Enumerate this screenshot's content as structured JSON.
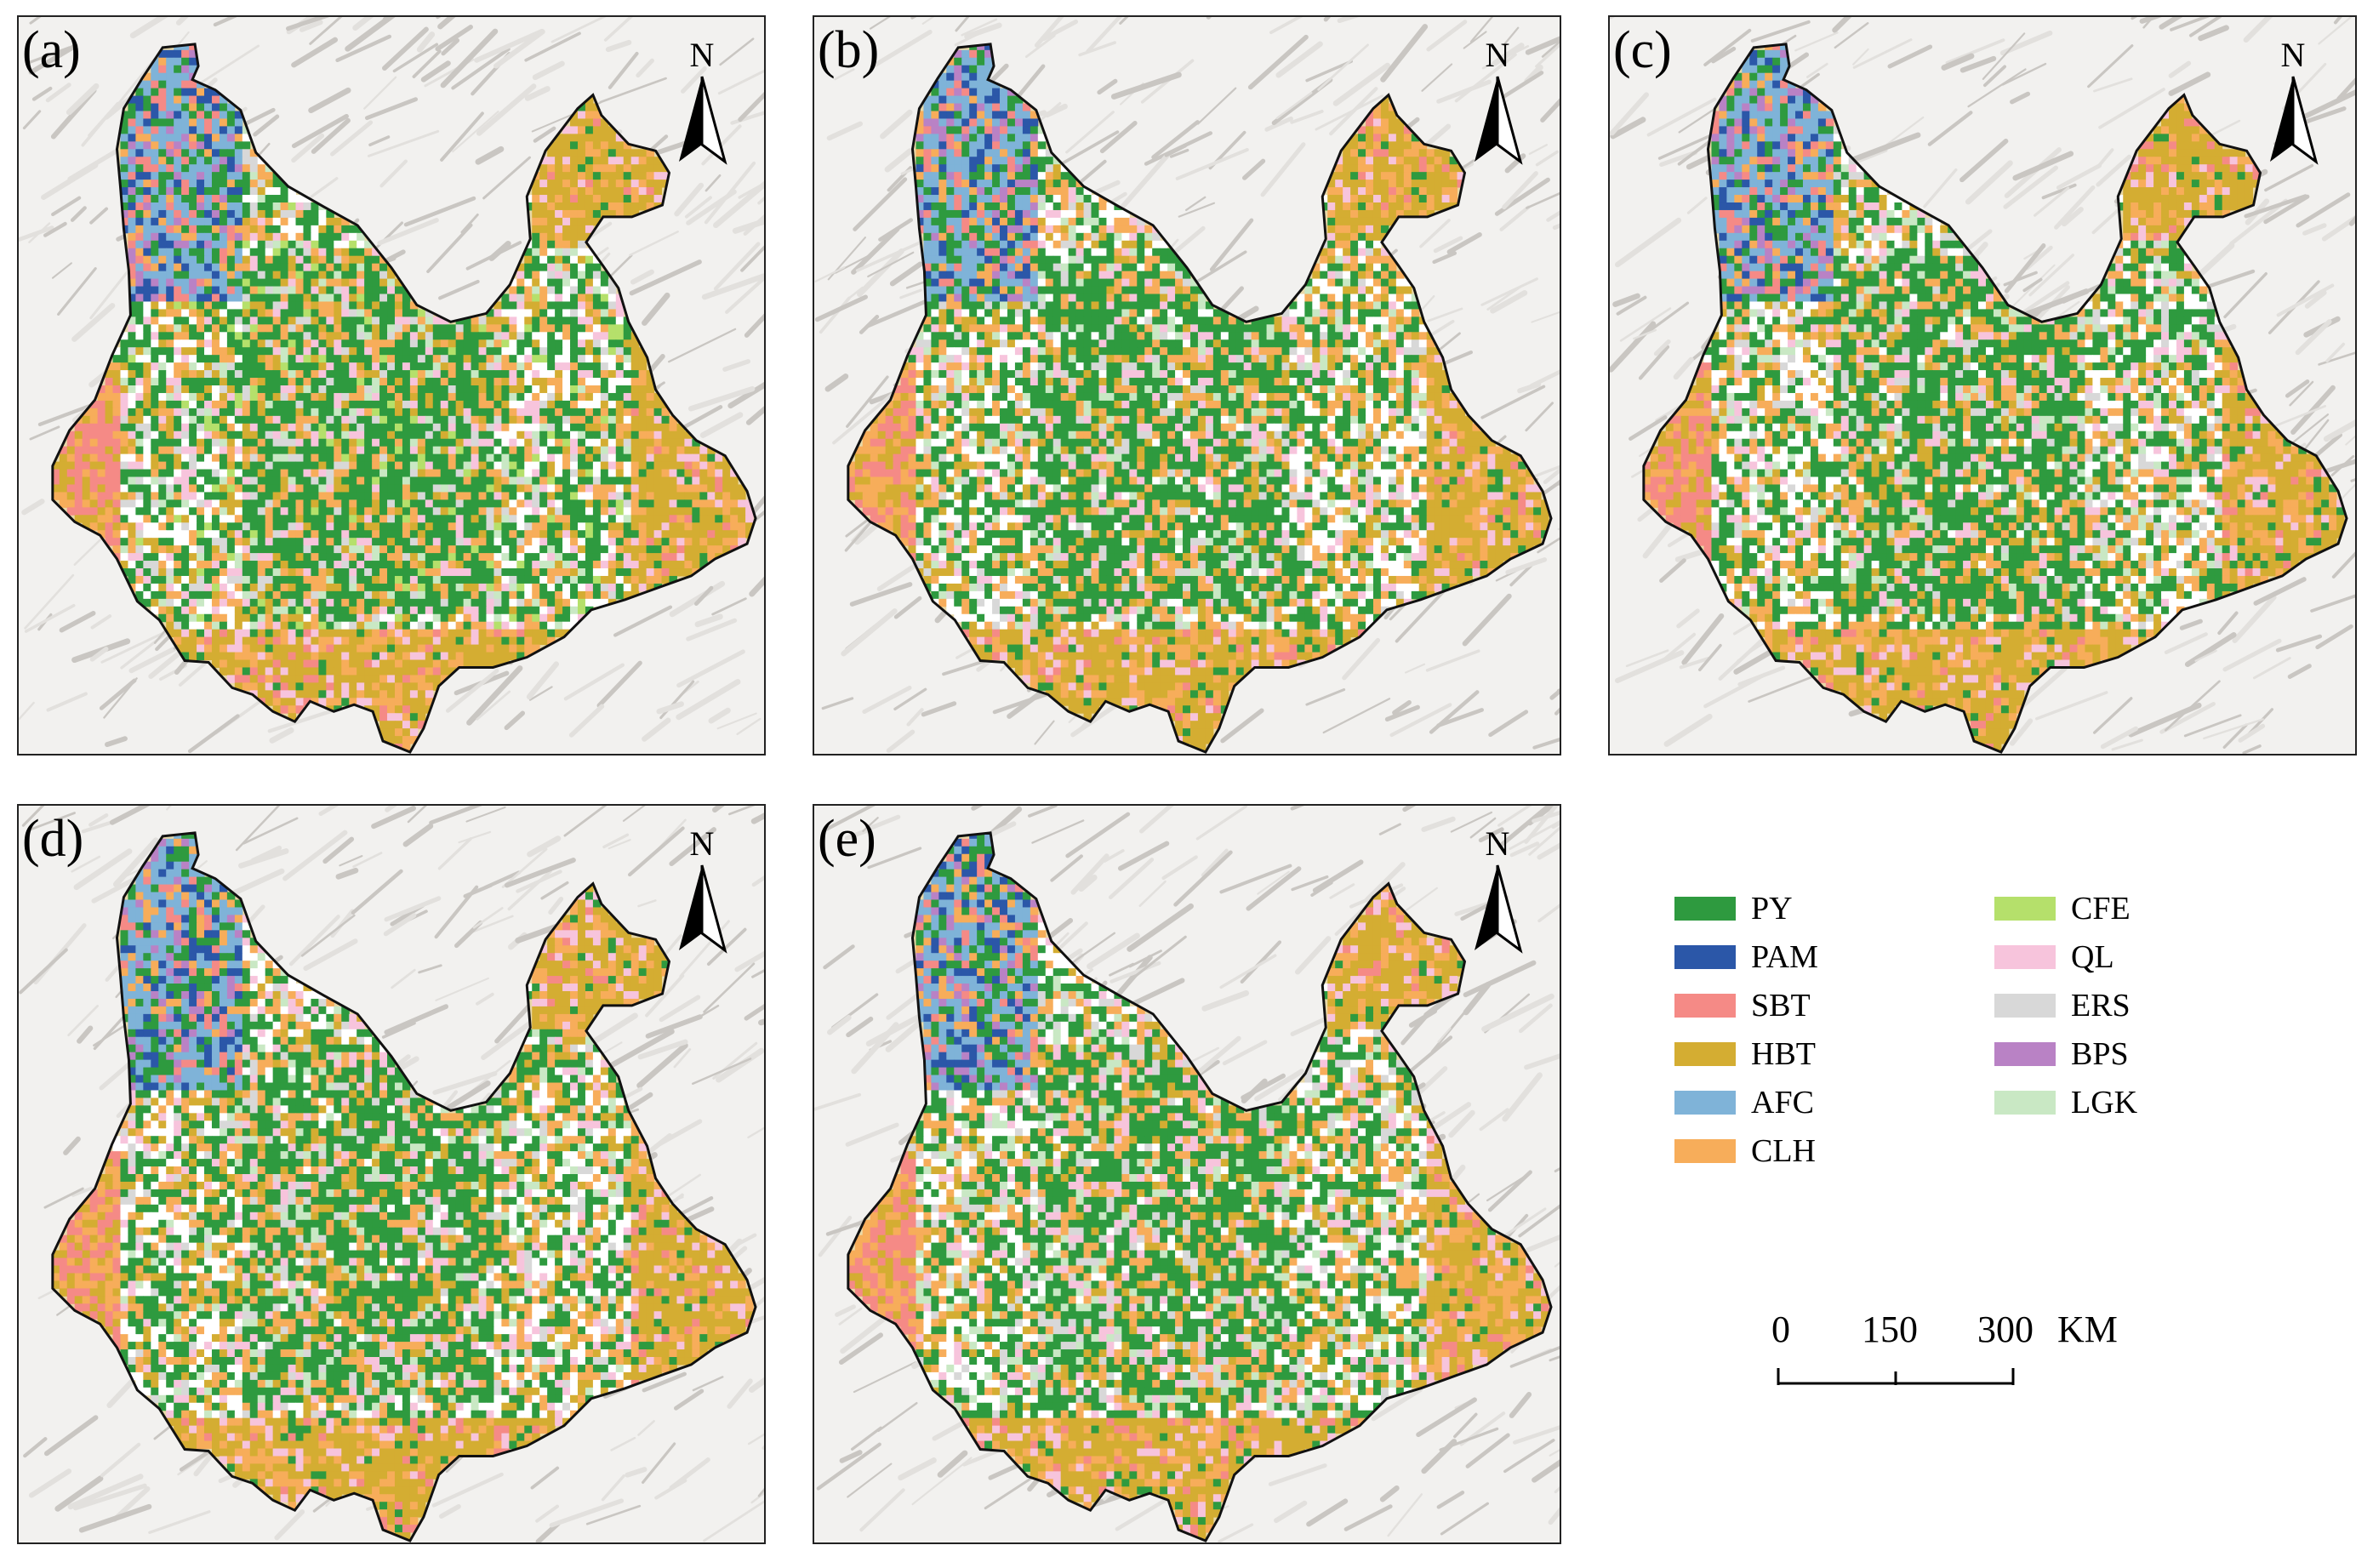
{
  "panels": [
    {
      "label": "(a)",
      "north": "N"
    },
    {
      "label": "(b)",
      "north": "N"
    },
    {
      "label": "(c)",
      "north": "N"
    },
    {
      "label": "(d)",
      "north": "N"
    },
    {
      "label": "(e)",
      "north": "N"
    }
  ],
  "legend": [
    {
      "label": "PY",
      "color": "#2e9a3f"
    },
    {
      "label": "PAM",
      "color": "#2b57a8"
    },
    {
      "label": "SBT",
      "color": "#f58a86"
    },
    {
      "label": "HBT",
      "color": "#d4ad32"
    },
    {
      "label": "AFC",
      "color": "#7fb3d8"
    },
    {
      "label": "CLH",
      "color": "#f7ad5a"
    },
    {
      "label": "CFE",
      "color": "#b5e06b"
    },
    {
      "label": "QL",
      "color": "#f7c4dc"
    },
    {
      "label": "ERS",
      "color": "#d8d8d8"
    },
    {
      "label": "BPS",
      "color": "#b982c5"
    },
    {
      "label": "LGK",
      "color": "#c9e8c4"
    }
  ],
  "scale": {
    "ticks": [
      "0",
      "150",
      "300"
    ],
    "unit": "KM"
  }
}
